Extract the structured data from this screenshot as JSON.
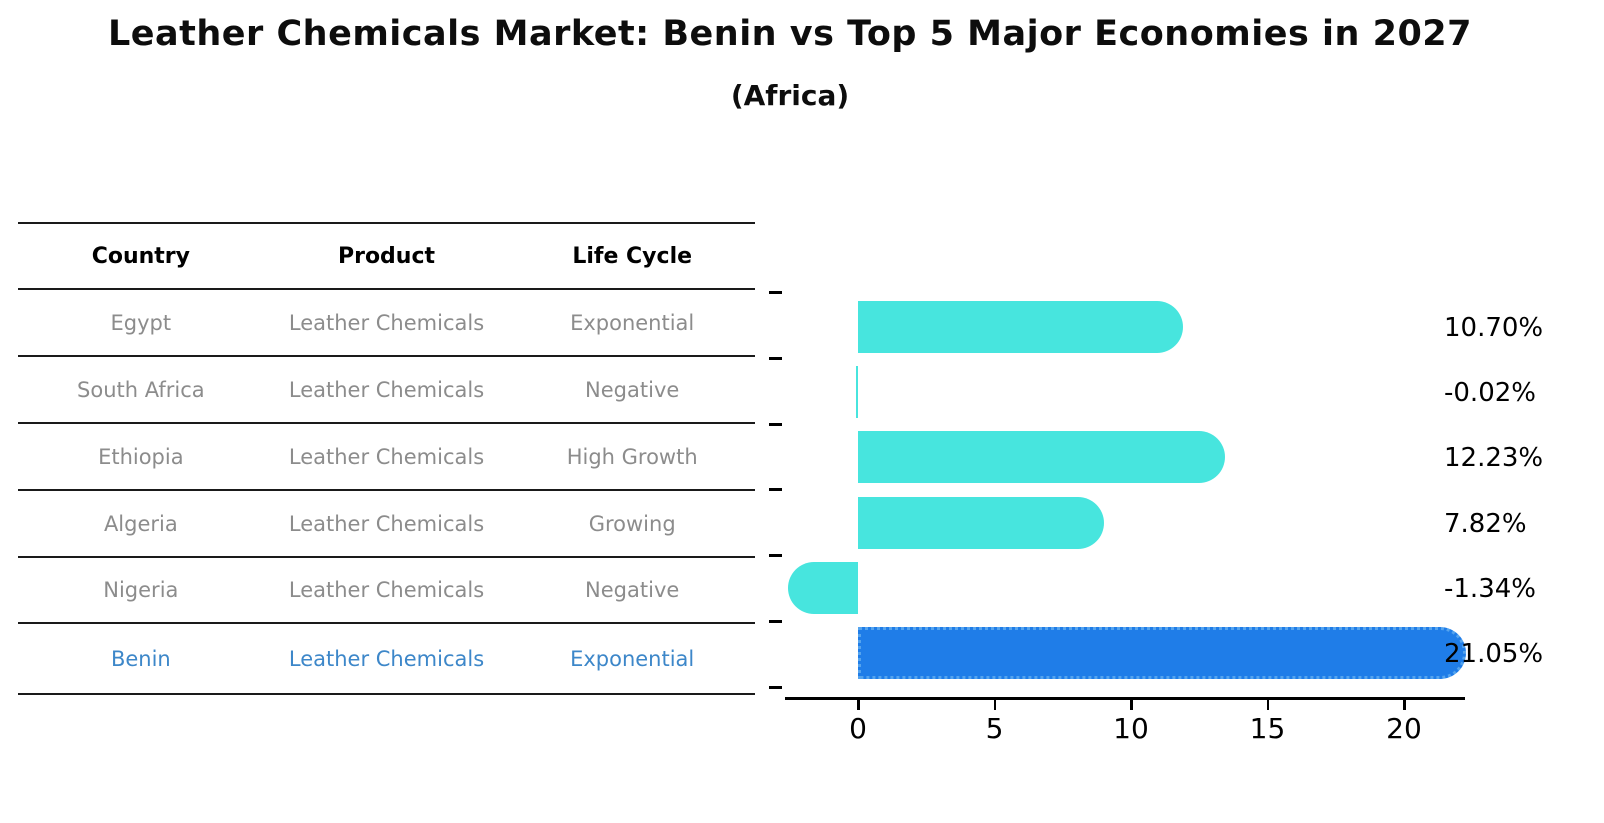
{
  "header": {
    "title": "Leather Chemicals Market: Benin vs Top 5 Major Economies in 2027",
    "subtitle": "(Africa)"
  },
  "table": {
    "columns": [
      "Country",
      "Product",
      "Life Cycle"
    ],
    "rows": [
      {
        "country": "Egypt",
        "product": "Leather Chemicals",
        "life_cycle": "Exponential"
      },
      {
        "country": "South Africa",
        "product": "Leather Chemicals",
        "life_cycle": "Negative"
      },
      {
        "country": "Ethiopia",
        "product": "Leather Chemicals",
        "life_cycle": "High Growth"
      },
      {
        "country": "Algeria",
        "product": "Leather Chemicals",
        "life_cycle": "Growing"
      },
      {
        "country": "Nigeria",
        "product": "Leather Chemicals",
        "life_cycle": "Negative"
      },
      {
        "country": "Benin",
        "product": "Leather Chemicals",
        "life_cycle": "Exponential"
      }
    ],
    "highlight_row": "Benin"
  },
  "chart_data": {
    "type": "bar",
    "orientation": "horizontal",
    "title": "Leather Chemicals Market: Benin vs Top 5 Major Economies in 2027",
    "subtitle": "(Africa)",
    "categories": [
      "Egypt",
      "South Africa",
      "Ethiopia",
      "Algeria",
      "Nigeria",
      "Benin"
    ],
    "values": [
      10.7,
      -0.02,
      12.23,
      7.82,
      -1.34,
      21.05
    ],
    "value_labels": [
      "10.70%",
      "-0.02%",
      "12.23%",
      "7.82%",
      "-1.34%",
      "21.05%"
    ],
    "x_ticks": [
      0,
      5,
      10,
      15,
      20
    ],
    "xlim": [
      -3,
      22.5
    ],
    "grid": false,
    "legend": false,
    "bar_color": "#47e5de",
    "highlight_color": "#1f7de8",
    "highlight_index": 5
  },
  "colors": {
    "bar_cyan": "#47e5de",
    "bar_blue": "#1f7de8",
    "highlight_text": "#3d87c9",
    "table_text": "#8c8c8c",
    "axis": "#000000"
  }
}
